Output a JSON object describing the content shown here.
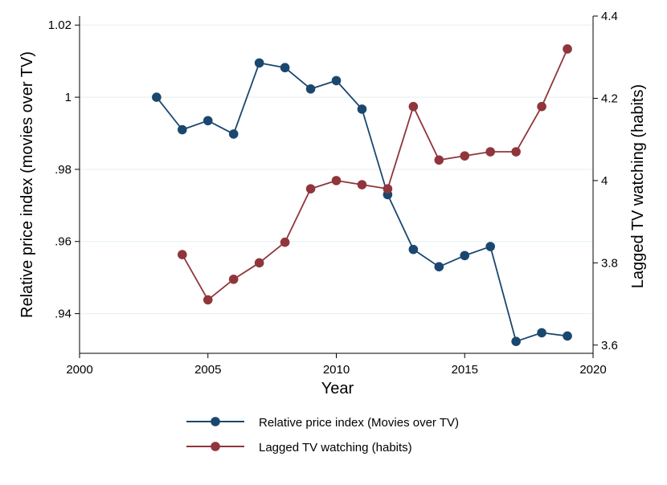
{
  "chart_data": {
    "type": "line",
    "title": "",
    "xlabel": "Year",
    "ylabel_left": "Relative price index (movies over TV)",
    "ylabel_right": "Lagged TV watching (habits)",
    "xlim": [
      2000,
      2020
    ],
    "x_ticks": [
      2000,
      2005,
      2010,
      2015,
      2020
    ],
    "ylim_left": [
      0.929,
      1.0225
    ],
    "y_ticks_left": [
      {
        "value": 0.94,
        "label": ".94"
      },
      {
        "value": 0.96,
        "label": ".96"
      },
      {
        "value": 0.98,
        "label": ".98"
      },
      {
        "value": 1.0,
        "label": "1"
      },
      {
        "value": 1.02,
        "label": "1.02"
      }
    ],
    "ylim_right": [
      3.58,
      4.4
    ],
    "y_ticks_right": [
      {
        "value": 3.6,
        "label": "3.6"
      },
      {
        "value": 3.8,
        "label": "3.8"
      },
      {
        "value": 4.0,
        "label": "4"
      },
      {
        "value": 4.2,
        "label": "4.2"
      },
      {
        "value": 4.4,
        "label": "4.4"
      }
    ],
    "grid": true,
    "legend_position": "bottom",
    "series": [
      {
        "name": "Relative price index (Movies over TV)",
        "axis": "left",
        "color": "#1a476f",
        "x": [
          2003,
          2004,
          2005,
          2006,
          2007,
          2008,
          2009,
          2010,
          2011,
          2012,
          2013,
          2014,
          2015,
          2016,
          2017,
          2018,
          2019
        ],
        "values": [
          1.0,
          0.991,
          0.9935,
          0.9898,
          1.0095,
          1.0082,
          1.0023,
          1.0046,
          0.9967,
          0.973,
          0.9578,
          0.953,
          0.9561,
          0.9586,
          0.9323,
          0.9347,
          0.9338
        ]
      },
      {
        "name": "Lagged TV watching (habits)",
        "axis": "right",
        "color": "#90353b",
        "x": [
          2004,
          2005,
          2006,
          2007,
          2008,
          2009,
          2010,
          2011,
          2012,
          2013,
          2014,
          2015,
          2016,
          2017,
          2018,
          2019
        ],
        "values": [
          3.82,
          3.71,
          3.76,
          3.8,
          3.85,
          3.98,
          4.0,
          3.99,
          3.98,
          4.18,
          4.05,
          4.06,
          4.07,
          4.07,
          4.18,
          4.32
        ]
      }
    ]
  }
}
